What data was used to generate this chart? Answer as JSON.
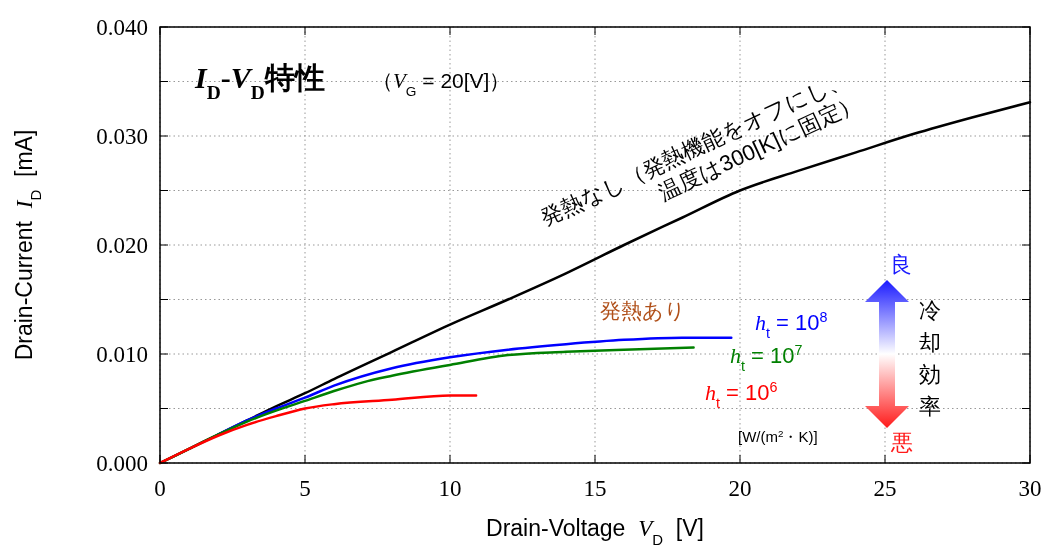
{
  "chart_data": {
    "type": "line",
    "title": "I$_{D}$-V$_{D}$特性",
    "subtitle": "（V$_{G}$ = 20[V]）",
    "xlabel": "Drain-Voltage  V$_{D}$  [V]",
    "ylabel": "Drain-Current  I$_{D}$  [mA]",
    "xlim": [
      0,
      30
    ],
    "xticks": [
      0,
      5,
      10,
      15,
      20,
      25,
      30
    ],
    "ylim": [
      0,
      0.04
    ],
    "yticks": [
      {
        "value": 0,
        "label": "0.000"
      },
      {
        "value": 0.005,
        "label": null
      },
      {
        "value": 0.01,
        "label": "0.010"
      },
      {
        "value": 0.015,
        "label": null
      },
      {
        "value": 0.02,
        "label": "0.020"
      },
      {
        "value": 0.025,
        "label": null
      },
      {
        "value": 0.03,
        "label": "0.030"
      },
      {
        "value": 0.035,
        "label": null
      },
      {
        "value": 0.04,
        "label": "0.040"
      }
    ],
    "grid": true,
    "line_style": "solid",
    "marker": "none",
    "series": [
      {
        "name": "発熱なし（発熱機能をオフにし、\n温度は300[K]に固定）",
        "color": "#000000",
        "x": [
          0,
          1,
          2,
          3,
          4,
          5,
          6,
          8,
          10,
          12,
          14,
          16,
          18,
          20,
          22,
          24,
          26,
          28,
          30
        ],
        "values": [
          0,
          0.0013,
          0.0026,
          0.0039,
          0.0052,
          0.0064,
          0.0077,
          0.0102,
          0.0127,
          0.015,
          0.0174,
          0.02,
          0.0225,
          0.025,
          0.0268,
          0.0285,
          0.0302,
          0.0317,
          0.0331
        ]
      },
      {
        "name": "h$_{t}$ = 10$^{8}$",
        "color": "#0000ff",
        "x": [
          2,
          3,
          4,
          5,
          6,
          8,
          10,
          12,
          14,
          16,
          18,
          19.7
        ],
        "values": [
          0.0026,
          0.0039,
          0.005,
          0.006,
          0.0071,
          0.0087,
          0.0097,
          0.0104,
          0.0109,
          0.0113,
          0.0115,
          0.0115
        ]
      },
      {
        "name": "h$_{t}$ = 10$^{7}$",
        "color": "#008000",
        "x": [
          0,
          1,
          2,
          3,
          4,
          5,
          6,
          7,
          8,
          10,
          12,
          14,
          16,
          18.4
        ],
        "values": [
          0,
          0.0013,
          0.0026,
          0.0038,
          0.0048,
          0.0057,
          0.0066,
          0.0074,
          0.008,
          0.009,
          0.0099,
          0.0102,
          0.0104,
          0.0106
        ]
      },
      {
        "name": "h$_{t}$ = 10$^{6}$",
        "color": "#ff0000",
        "x": [
          0,
          1,
          2,
          3,
          4,
          5,
          6,
          8,
          10,
          10.9
        ],
        "values": [
          0,
          0.0013,
          0.0025,
          0.0035,
          0.0043,
          0.005,
          0.0054,
          0.0058,
          0.0062,
          0.0062
        ]
      }
    ],
    "annotations": [
      "発熱あり",
      "[W/(m$^{2}$・K)]",
      "良",
      "冷却効率",
      "悪"
    ]
  }
}
